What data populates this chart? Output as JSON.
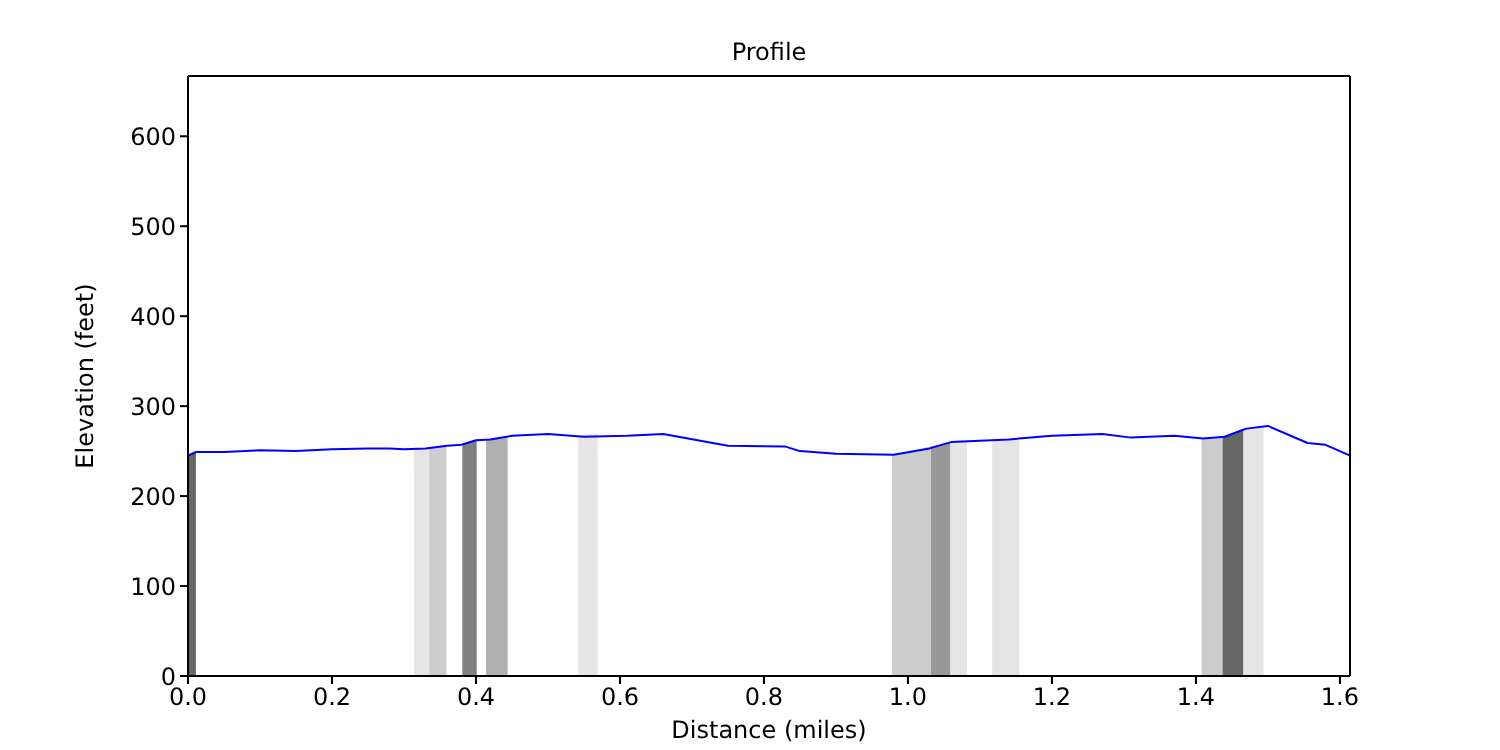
{
  "chart_data": {
    "type": "line",
    "title": "Profile",
    "xlabel": "Distance (miles)",
    "ylabel": "Elevation (feet)",
    "xlim": [
      0,
      1.614
    ],
    "xticks": [
      {
        "value": 0,
        "label": "0.0"
      },
      0.2,
      0.4,
      0.6,
      0.8,
      {
        "value": 1,
        "label": "1.0"
      },
      1.2,
      1.4,
      1.6
    ],
    "ylim": [
      0,
      667
    ],
    "yticks": [
      0,
      100,
      200,
      300,
      400,
      500,
      600
    ],
    "grid": false,
    "series": [
      {
        "type": "area",
        "color": "#666666",
        "x": [
          0,
          0.011
        ],
        "values": [
          245,
          249
        ]
      },
      {
        "type": "area",
        "color": "#e5e5e5",
        "x": [
          0.314,
          0.335
        ],
        "values": [
          253,
          254
        ]
      },
      {
        "type": "area",
        "color": "#cccccc",
        "x": [
          0.335,
          0.359
        ],
        "values": [
          254,
          257
        ]
      },
      {
        "type": "area",
        "color": "#808080",
        "x": [
          0.381,
          0.401
        ],
        "values": [
          257,
          262
        ]
      },
      {
        "type": "area",
        "color": "#b0b0b0",
        "x": [
          0.414,
          0.444
        ],
        "values": [
          263,
          267
        ]
      },
      {
        "type": "area",
        "color": "#e5e5e5",
        "x": [
          0.542,
          0.569
        ],
        "values": [
          268,
          269
        ]
      },
      {
        "type": "area",
        "color": "#cccccc",
        "x": [
          0.978,
          1.032
        ],
        "values": [
          246,
          255
        ]
      },
      {
        "type": "area",
        "color": "#999999",
        "x": [
          1.032,
          1.059
        ],
        "values": [
          255,
          260
        ]
      },
      {
        "type": "area",
        "color": "#e5e5e5",
        "x": [
          1.059,
          1.082
        ],
        "values": [
          260,
          261
        ]
      },
      {
        "type": "area",
        "color": "#e5e5e5",
        "x": [
          1.117,
          1.155
        ],
        "values": [
          262,
          264
        ]
      },
      {
        "type": "area",
        "color": "#cccccc",
        "x": [
          1.408,
          1.437
        ],
        "values": [
          264,
          266
        ]
      },
      {
        "type": "area",
        "color": "#666666",
        "x": [
          1.437,
          1.466
        ],
        "values": [
          266,
          275
        ]
      },
      {
        "type": "area",
        "color": "#e5e5e5",
        "x": [
          1.466,
          1.494
        ],
        "values": [
          275,
          277
        ]
      },
      {
        "color": "#0000ff",
        "x": [
          0,
          0.011,
          0.05,
          0.1,
          0.15,
          0.2,
          0.25,
          0.28,
          0.3,
          0.33,
          0.36,
          0.38,
          0.4,
          0.42,
          0.45,
          0.5,
          0.55,
          0.61,
          0.66,
          0.75,
          0.83,
          0.85,
          0.9,
          0.98,
          1.03,
          1.06,
          1.14,
          1.2,
          1.27,
          1.31,
          1.37,
          1.41,
          1.44,
          1.47,
          1.5,
          1.555,
          1.58,
          1.614
        ],
        "values": [
          245,
          249,
          249,
          251,
          250,
          252,
          253,
          253,
          252,
          253,
          256,
          257,
          262,
          263,
          267,
          269,
          266,
          267,
          269,
          256,
          255,
          250,
          247,
          246,
          253,
          260,
          263,
          267,
          269,
          265,
          267,
          264,
          266,
          275,
          278,
          259,
          257,
          245
        ]
      }
    ]
  }
}
